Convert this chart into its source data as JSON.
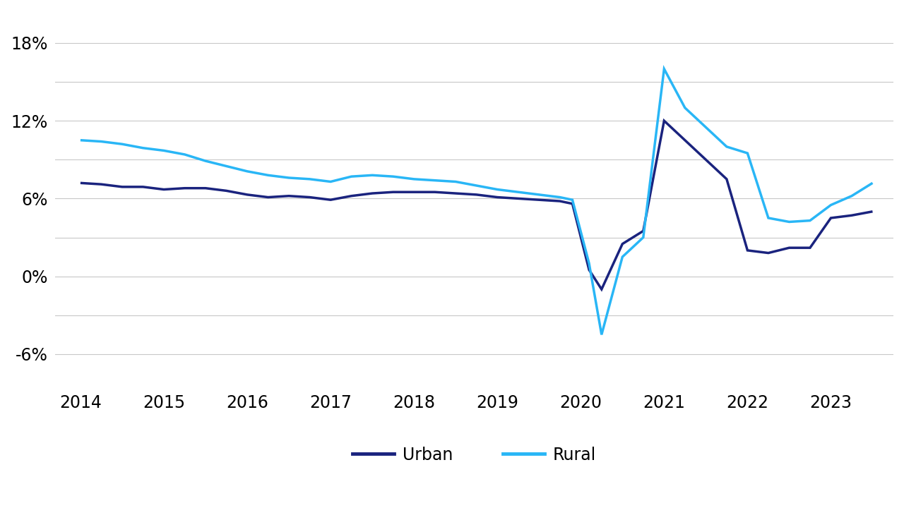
{
  "urban": {
    "x": [
      2014,
      2014.25,
      2014.5,
      2014.75,
      2015,
      2015.25,
      2015.5,
      2015.75,
      2016,
      2016.25,
      2016.5,
      2016.75,
      2017,
      2017.25,
      2017.5,
      2017.75,
      2018,
      2018.25,
      2018.5,
      2018.75,
      2019,
      2019.25,
      2019.5,
      2019.75,
      2019.9,
      2020.1,
      2020.25,
      2020.5,
      2020.75,
      2021,
      2021.25,
      2021.5,
      2021.75,
      2022,
      2022.25,
      2022.5,
      2022.75,
      2023,
      2023.25,
      2023.5
    ],
    "y": [
      7.2,
      7.1,
      6.9,
      6.9,
      6.7,
      6.8,
      6.8,
      6.6,
      6.3,
      6.1,
      6.2,
      6.1,
      5.9,
      6.2,
      6.4,
      6.5,
      6.5,
      6.5,
      6.4,
      6.3,
      6.1,
      6.0,
      5.9,
      5.8,
      5.6,
      0.5,
      -1.0,
      2.5,
      3.5,
      12.0,
      10.5,
      9.0,
      7.5,
      2.0,
      1.8,
      2.2,
      2.2,
      4.5,
      4.7,
      5.0
    ]
  },
  "rural": {
    "x": [
      2014,
      2014.25,
      2014.5,
      2014.75,
      2015,
      2015.25,
      2015.5,
      2015.75,
      2016,
      2016.25,
      2016.5,
      2016.75,
      2017,
      2017.25,
      2017.5,
      2017.75,
      2018,
      2018.25,
      2018.5,
      2018.75,
      2019,
      2019.25,
      2019.5,
      2019.75,
      2019.9,
      2020.1,
      2020.25,
      2020.5,
      2020.75,
      2021,
      2021.25,
      2021.5,
      2021.75,
      2022,
      2022.25,
      2022.5,
      2022.75,
      2023,
      2023.25,
      2023.5
    ],
    "y": [
      10.5,
      10.4,
      10.2,
      9.9,
      9.7,
      9.4,
      8.9,
      8.5,
      8.1,
      7.8,
      7.6,
      7.5,
      7.3,
      7.7,
      7.8,
      7.7,
      7.5,
      7.4,
      7.3,
      7.0,
      6.7,
      6.5,
      6.3,
      6.1,
      5.9,
      1.0,
      -4.5,
      1.5,
      3.0,
      16.0,
      13.0,
      11.5,
      10.0,
      9.5,
      4.5,
      4.2,
      4.3,
      5.5,
      6.2,
      7.2
    ]
  },
  "urban_color": "#1a237e",
  "rural_color": "#29b6f6",
  "line_width": 2.5,
  "yticks": [
    -6,
    -3,
    0,
    3,
    6,
    9,
    12,
    15,
    18
  ],
  "ytick_labels": [
    "-6%",
    "",
    "0%",
    "",
    "6%",
    "",
    "12%",
    "",
    "18%"
  ],
  "ylim": [
    -8.5,
    20.5
  ],
  "xlim": [
    2013.7,
    2023.75
  ],
  "xticks": [
    2014,
    2015,
    2016,
    2017,
    2018,
    2019,
    2020,
    2021,
    2022,
    2023
  ],
  "background_color": "#ffffff",
  "legend_urban": "Urban",
  "legend_rural": "Rural",
  "grid_color": "#c8c8c8",
  "font_size_ticks": 17,
  "font_size_legend": 17
}
